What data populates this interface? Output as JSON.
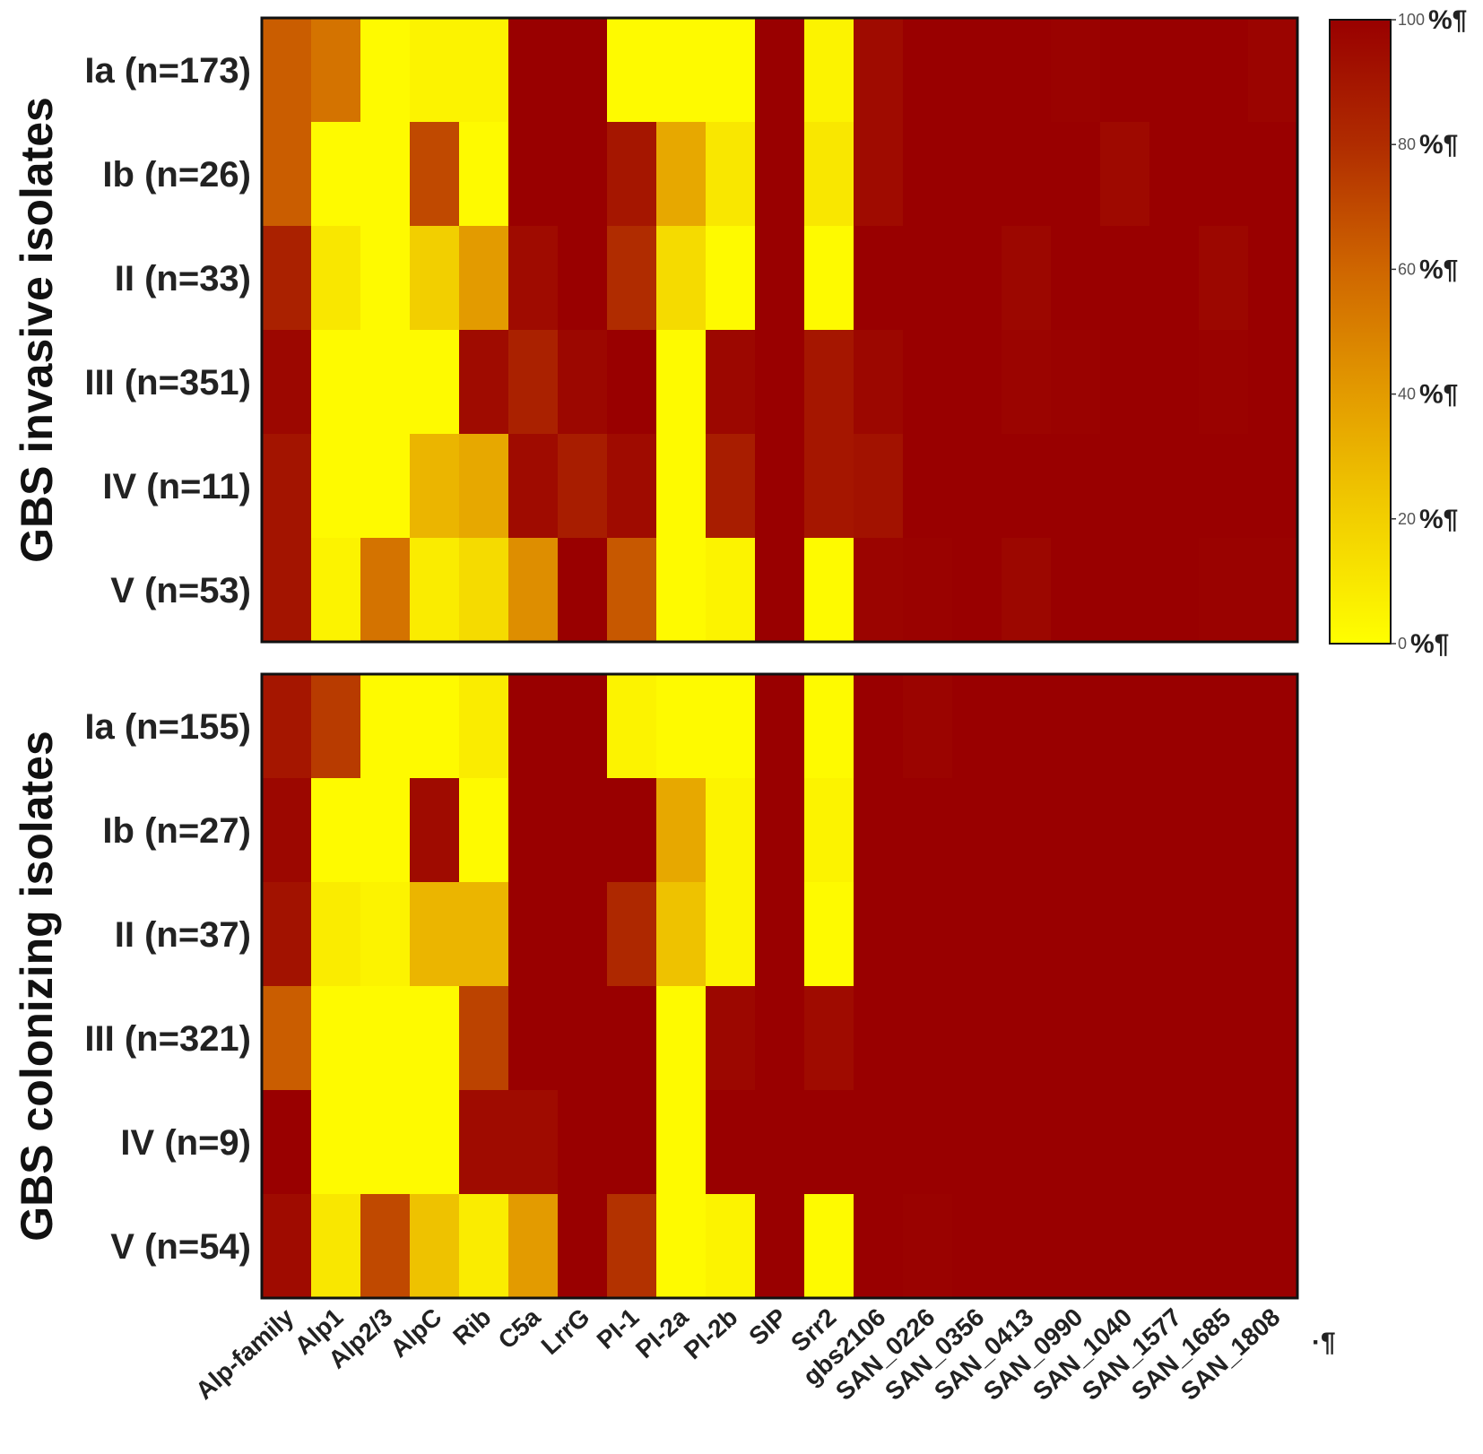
{
  "chart_data": {
    "type": "heatmap",
    "columns": [
      "Alp-family",
      "Alp1",
      "Alp2/3",
      "AlpC",
      "Rib",
      "C5a",
      "LrrG",
      "PI-1",
      "PI-2a",
      "PI-2b",
      "SIP",
      "Srr2",
      "gbs2106",
      "SAN_0226",
      "SAN_0356",
      "SAN_0413",
      "SAN_0990",
      "SAN_1040",
      "SAN_1577",
      "SAN_1685",
      "SAN_1808"
    ],
    "panels": [
      {
        "name": "GBS invasive isolates",
        "rows": [
          "Ia (n=173)",
          "Ib (n=26)",
          "II (n=33)",
          "III (n=351)",
          "IV (n=11)",
          "V (n=53)"
        ],
        "values": [
          [
            63,
            55,
            2,
            5,
            5,
            100,
            100,
            2,
            2,
            2,
            100,
            5,
            95,
            100,
            100,
            100,
            99,
            100,
            100,
            100,
            98
          ],
          [
            63,
            2,
            2,
            70,
            2,
            100,
            100,
            90,
            35,
            10,
            100,
            10,
            95,
            100,
            100,
            100,
            100,
            96,
            100,
            100,
            100
          ],
          [
            85,
            10,
            2,
            20,
            40,
            95,
            100,
            80,
            15,
            2,
            100,
            2,
            100,
            100,
            100,
            97,
            100,
            100,
            100,
            97,
            100
          ],
          [
            97,
            2,
            2,
            2,
            95,
            85,
            97,
            100,
            2,
            97,
            100,
            90,
            97,
            100,
            100,
            98,
            99,
            100,
            100,
            99,
            100
          ],
          [
            91,
            2,
            2,
            30,
            35,
            95,
            87,
            95,
            2,
            87,
            100,
            90,
            92,
            100,
            100,
            100,
            100,
            100,
            100,
            100,
            100
          ],
          [
            91,
            5,
            55,
            8,
            15,
            45,
            100,
            65,
            2,
            5,
            100,
            2,
            98,
            99,
            100,
            97,
            100,
            100,
            100,
            99,
            99
          ]
        ]
      },
      {
        "name": "GBS colonizing isolates",
        "rows": [
          "Ia (n=155)",
          "Ib (n=27)",
          "II (n=37)",
          "III (n=321)",
          "IV (n=9)",
          "V (n=54)"
        ],
        "values": [
          [
            90,
            75,
            2,
            2,
            8,
            100,
            100,
            5,
            2,
            2,
            100,
            2,
            100,
            98,
            100,
            100,
            100,
            100,
            100,
            100,
            100
          ],
          [
            97,
            2,
            2,
            95,
            2,
            100,
            100,
            100,
            35,
            5,
            100,
            5,
            100,
            100,
            100,
            100,
            100,
            100,
            100,
            100,
            100
          ],
          [
            92,
            8,
            5,
            30,
            30,
            100,
            100,
            82,
            25,
            5,
            100,
            2,
            100,
            100,
            100,
            100,
            100,
            100,
            100,
            100,
            100
          ],
          [
            63,
            2,
            2,
            2,
            72,
            100,
            100,
            100,
            2,
            97,
            100,
            95,
            100,
            100,
            100,
            100,
            100,
            100,
            100,
            100,
            100
          ],
          [
            100,
            2,
            2,
            2,
            95,
            95,
            100,
            100,
            2,
            100,
            100,
            100,
            100,
            100,
            100,
            100,
            100,
            100,
            100,
            100,
            100
          ],
          [
            95,
            10,
            70,
            25,
            8,
            40,
            100,
            78,
            2,
            5,
            100,
            2,
            100,
            99,
            100,
            100,
            100,
            100,
            100,
            100,
            100
          ]
        ]
      }
    ],
    "colorbar": {
      "min": 0,
      "max": 100,
      "ticks": [
        {
          "value": 100,
          "num": "100",
          "unit": "%¶"
        },
        {
          "value": 80,
          "num": "80",
          "unit": "%¶"
        },
        {
          "value": 60,
          "num": "60",
          "unit": "%¶"
        },
        {
          "value": 40,
          "num": "40",
          "unit": "%¶"
        },
        {
          "value": 20,
          "num": "20",
          "unit": "%¶"
        },
        {
          "value": 0,
          "num": "0",
          "unit": "%¶"
        }
      ],
      "stops": [
        {
          "value": 0,
          "color": "#ffff00"
        },
        {
          "value": 20,
          "color": "#f2cf00"
        },
        {
          "value": 40,
          "color": "#e39b00"
        },
        {
          "value": 60,
          "color": "#cf6600"
        },
        {
          "value": 80,
          "color": "#b02c00"
        },
        {
          "value": 100,
          "color": "#990000"
        }
      ]
    },
    "stray_mark": "·¶"
  }
}
